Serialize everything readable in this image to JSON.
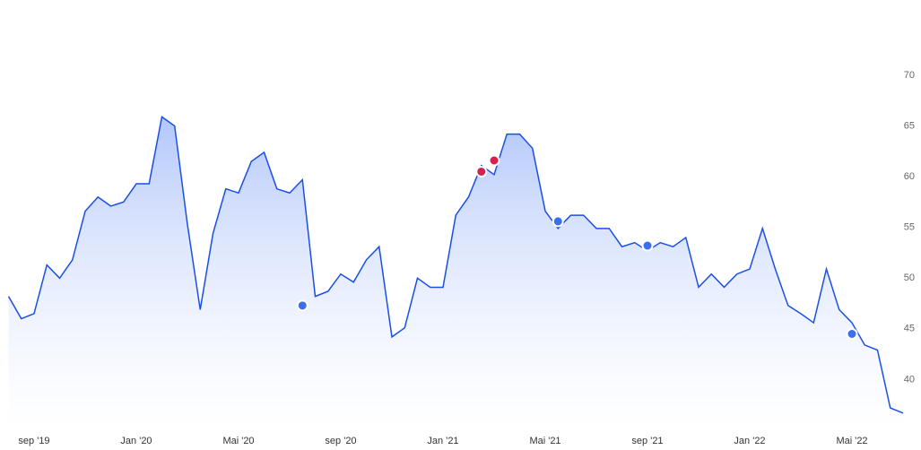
{
  "chart_data": {
    "type": "line",
    "categories": [
      null,
      null,
      "sep '19",
      null,
      null,
      null,
      null,
      null,
      null,
      null,
      "Jan '20",
      null,
      null,
      null,
      null,
      null,
      null,
      null,
      "Mai '20",
      null,
      null,
      null,
      null,
      null,
      null,
      null,
      "sep '20",
      null,
      null,
      null,
      null,
      null,
      null,
      null,
      "Jan '21",
      null,
      null,
      null,
      null,
      null,
      null,
      null,
      "Mai '21",
      null,
      null,
      null,
      null,
      null,
      null,
      null,
      "sep '21",
      null,
      null,
      null,
      null,
      null,
      null,
      null,
      "Jan '22",
      null,
      null,
      null,
      null,
      null,
      null,
      null,
      "Mai '22",
      null,
      null,
      null,
      null
    ],
    "series": [
      {
        "color": "#1a4fe6",
        "values": [
          48.2,
          46,
          46.5,
          51.3,
          50,
          51.8,
          56.6,
          58,
          57.1,
          57.5,
          59.3,
          59.3,
          65.9,
          65,
          55.3,
          46.9,
          54.4,
          58.8,
          58.4,
          61.5,
          62.4,
          58.8,
          58.4,
          59.7,
          48.2,
          48.7,
          50.4,
          49.6,
          51.8,
          53.1,
          44.2,
          45.1,
          50,
          49.1,
          49.1,
          56.2,
          58,
          61.1,
          60.2,
          64.2,
          64.2,
          62.8,
          56.6,
          54.9,
          56.2,
          56.2,
          54.9,
          54.9,
          53.1,
          53.5,
          52.7,
          53.5,
          53.1,
          54,
          49.1,
          50.4,
          49.1,
          50.4,
          50.9,
          54.9,
          50.9,
          47.3,
          46.5,
          45.6,
          50.9,
          46.9,
          45.6,
          43.4,
          42.9,
          37.2,
          36.7
        ]
      },
      {
        "color": "#d6204f",
        "style": "dots",
        "values": [
          null,
          null,
          null,
          null,
          null,
          null,
          null,
          null,
          null,
          null,
          null,
          null,
          null,
          null,
          null,
          null,
          null,
          null,
          null,
          null,
          null,
          null,
          null,
          null,
          null,
          null,
          null,
          null,
          null,
          null,
          null,
          null,
          null,
          null,
          null,
          null,
          null,
          60.5,
          61.6,
          null,
          null,
          null,
          null,
          null,
          null,
          null,
          null,
          null,
          null,
          null,
          null,
          null,
          null,
          null,
          null,
          null,
          null,
          null,
          null,
          null,
          null,
          null,
          null,
          null,
          null,
          null,
          null,
          null,
          null,
          null,
          null
        ]
      },
      {
        "color": "#3b6ff0",
        "style": "dots",
        "values": [
          null,
          null,
          null,
          null,
          null,
          null,
          null,
          null,
          null,
          null,
          null,
          null,
          null,
          null,
          null,
          null,
          null,
          null,
          null,
          null,
          null,
          null,
          null,
          47.3,
          null,
          null,
          null,
          null,
          null,
          null,
          null,
          null,
          null,
          null,
          null,
          null,
          null,
          null,
          null,
          null,
          null,
          null,
          null,
          55.6,
          null,
          null,
          null,
          null,
          null,
          null,
          53.2,
          null,
          null,
          null,
          null,
          null,
          null,
          null,
          null,
          null,
          null,
          null,
          null,
          null,
          null,
          null,
          44.5,
          null,
          null,
          null,
          null
        ]
      }
    ],
    "ylim": [
      35,
      73
    ],
    "yticks": [
      40,
      45,
      50,
      55,
      60,
      65,
      70
    ],
    "grid": false
  }
}
